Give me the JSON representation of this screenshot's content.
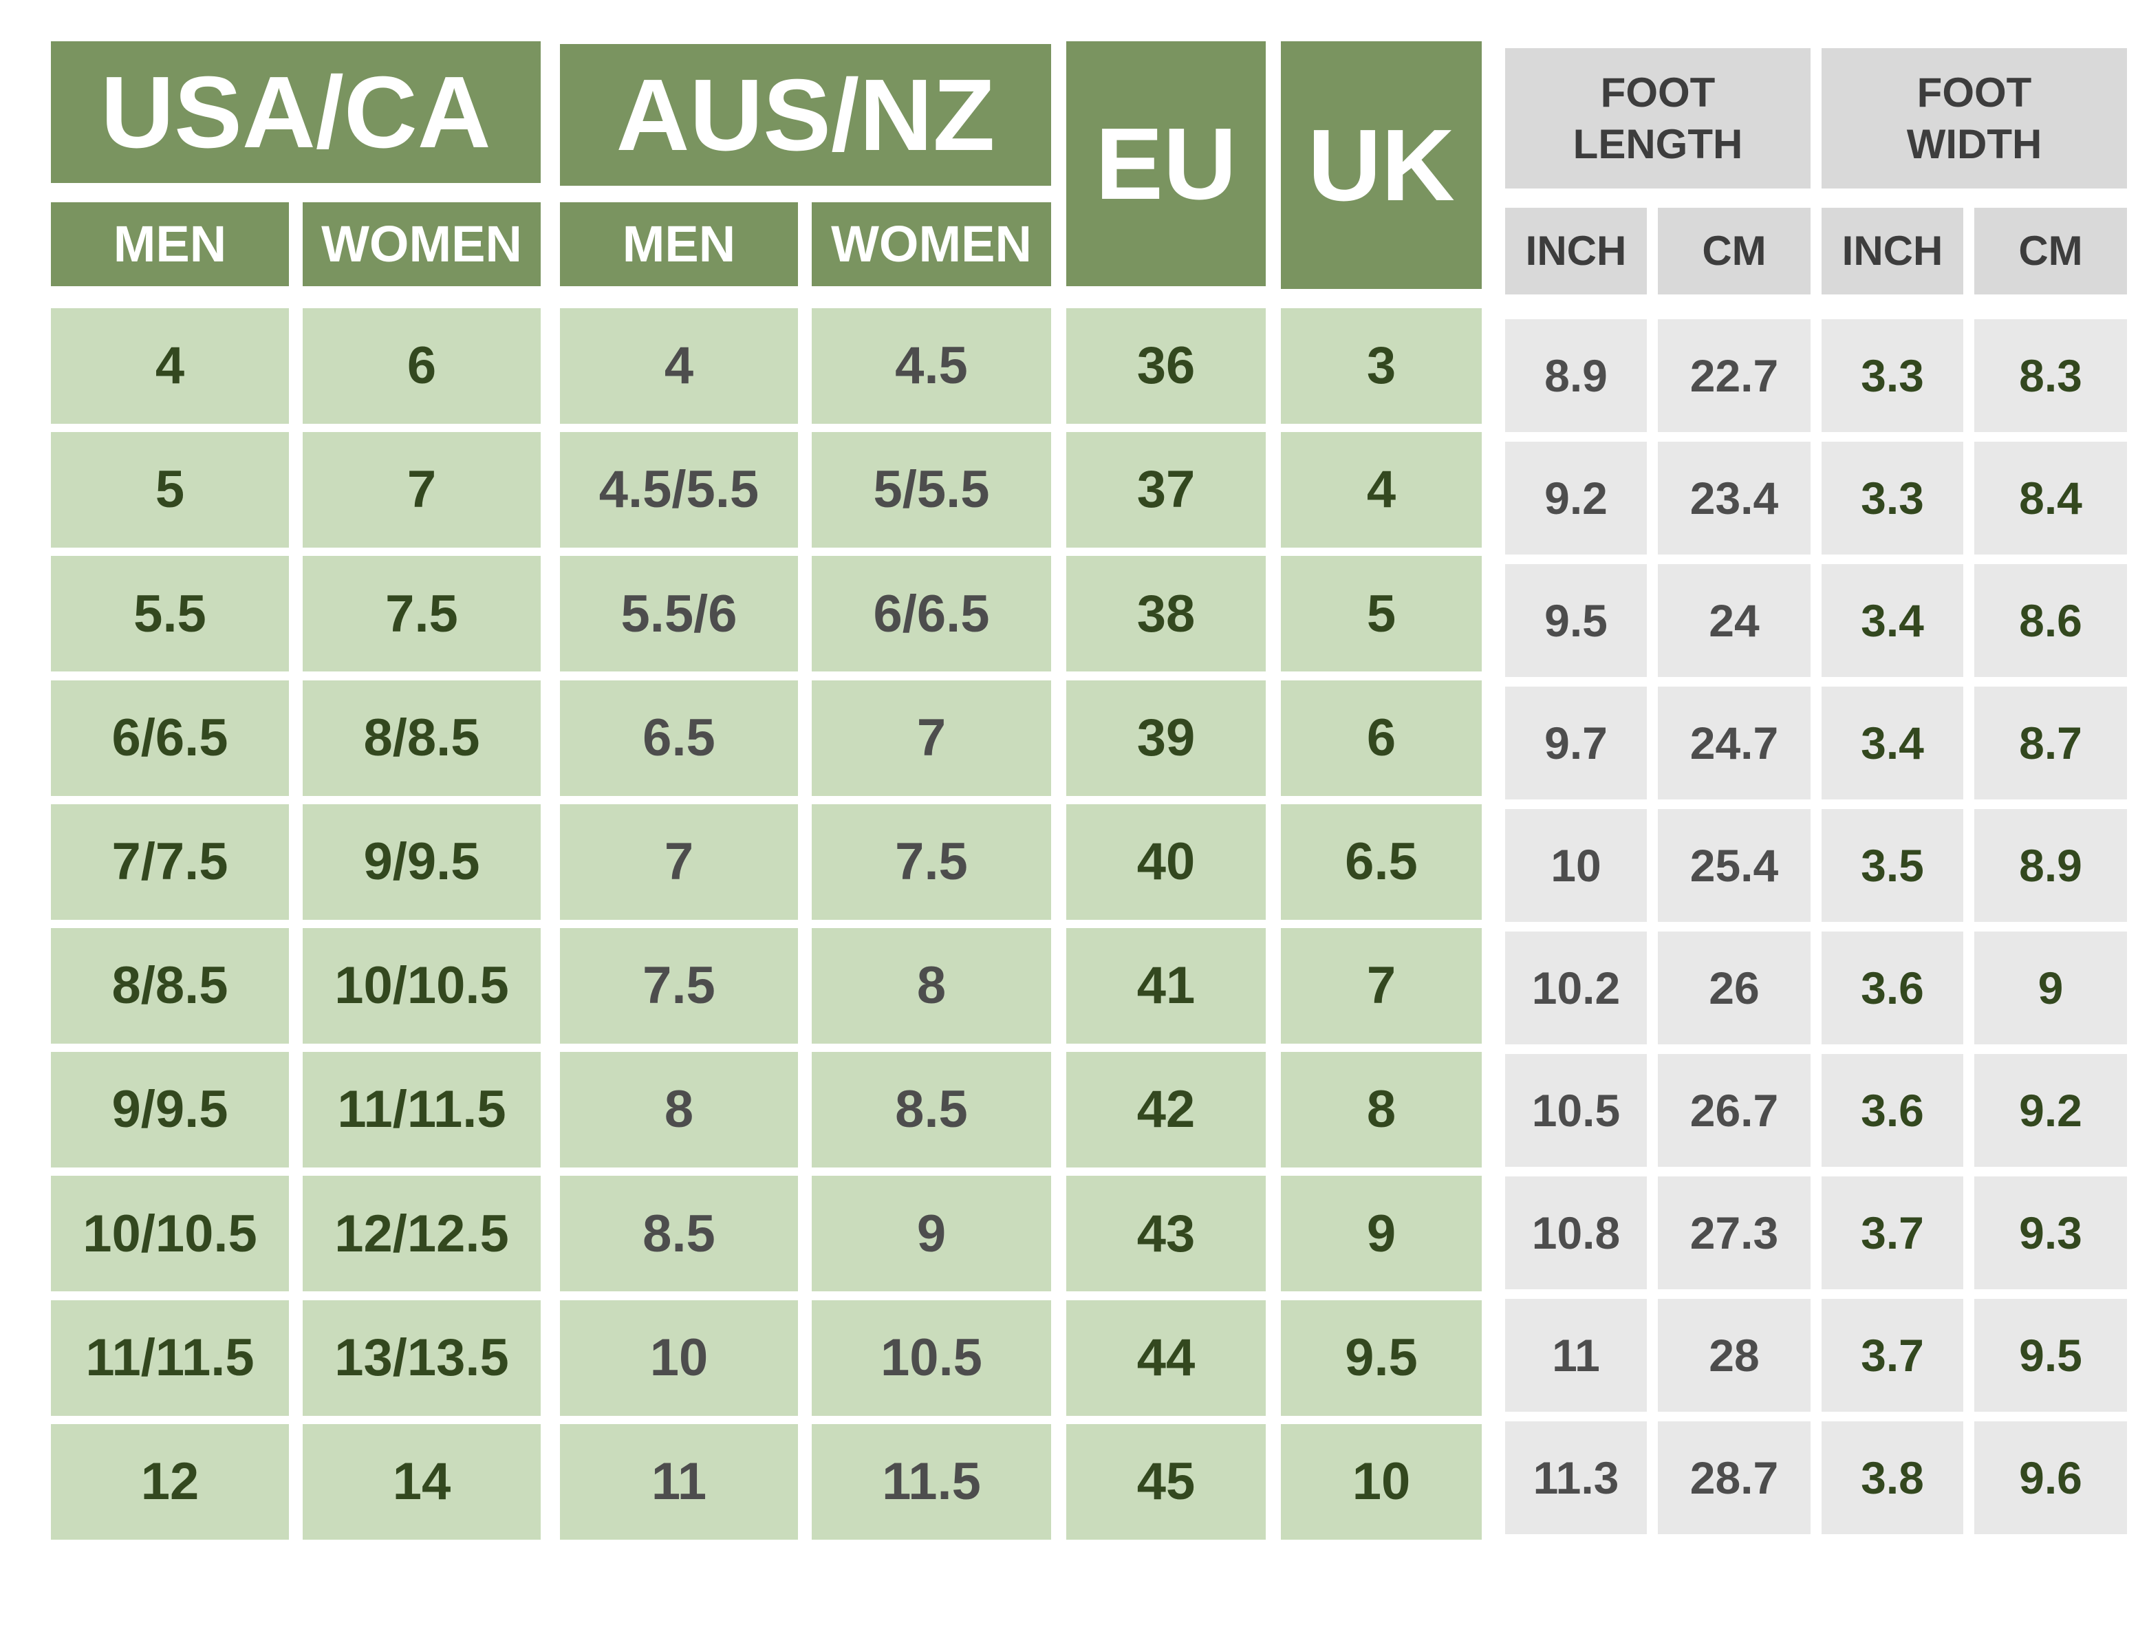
{
  "header": {
    "groups": [
      "USA/CA",
      "AUS/NZ",
      "EU",
      "UK",
      "FOOT\nLENGTH",
      "FOOT\nWIDTH"
    ],
    "subheaders": [
      "MEN",
      "WOMEN",
      "MEN",
      "WOMEN",
      "INCH",
      "CM",
      "INCH",
      "CM"
    ]
  },
  "table": {
    "rows": [
      [
        "4",
        "6",
        "4",
        "4.5",
        "36",
        "3",
        "8.9",
        "22.7",
        "3.3",
        "8.3"
      ],
      [
        "5",
        "7",
        "4.5/5.5",
        "5/5.5",
        "37",
        "4",
        "9.2",
        "23.4",
        "3.3",
        "8.4"
      ],
      [
        "5.5",
        "7.5",
        "5.5/6",
        "6/6.5",
        "38",
        "5",
        "9.5",
        "24",
        "3.4",
        "8.6"
      ],
      [
        "6/6.5",
        "8/8.5",
        "6.5",
        "7",
        "39",
        "6",
        "9.7",
        "24.7",
        "3.4",
        "8.7"
      ],
      [
        "7/7.5",
        "9/9.5",
        "7",
        "7.5",
        "40",
        "6.5",
        "10",
        "25.4",
        "3.5",
        "8.9"
      ],
      [
        "8/8.5",
        "10/10.5",
        "7.5",
        "8",
        "41",
        "7",
        "10.2",
        "26",
        "3.6",
        "9"
      ],
      [
        "9/9.5",
        "11/11.5",
        "8",
        "8.5",
        "42",
        "8",
        "10.5",
        "26.7",
        "3.6",
        "9.2"
      ],
      [
        "10/10.5",
        "12/12.5",
        "8.5",
        "9",
        "43",
        "9",
        "10.8",
        "27.3",
        "3.7",
        "9.3"
      ],
      [
        "11/11.5",
        "13/13.5",
        "10",
        "10.5",
        "44",
        "9.5",
        "11",
        "28",
        "3.7",
        "9.5"
      ],
      [
        "12",
        "14",
        "11",
        "11.5",
        "45",
        "10",
        "11.3",
        "28.7",
        "3.8",
        "9.6"
      ]
    ]
  }
}
